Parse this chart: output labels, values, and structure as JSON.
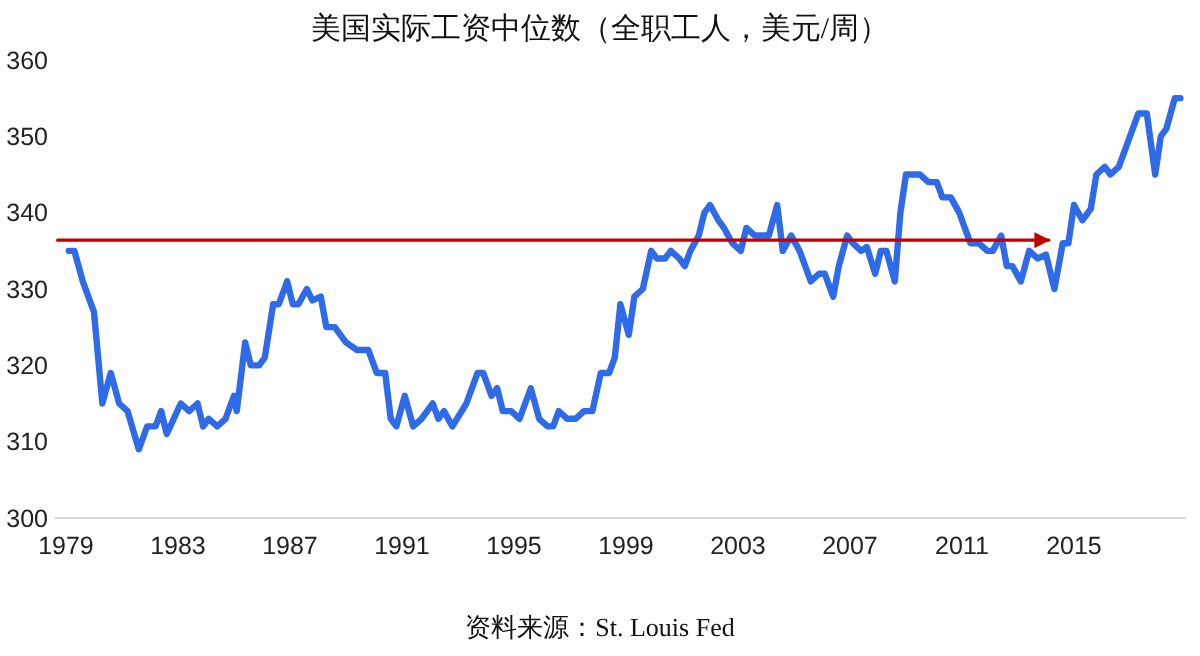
{
  "chart_data": {
    "type": "line",
    "title": "美国实际工资中位数（全职工人，美元/周）",
    "annotations": [
      "资料来源：St. Louis Fed"
    ],
    "xlim": [
      1978.6,
      2019
    ],
    "xticks": [
      1979,
      1983,
      1987,
      1991,
      1995,
      1999,
      2003,
      2007,
      2011,
      2015
    ],
    "ylim": [
      300,
      360
    ],
    "yticks": [
      300,
      310,
      320,
      330,
      340,
      350,
      360
    ],
    "series": [
      {
        "color": "#2f6ae8",
        "x": [
          1979.1,
          1979.3,
          1979.6,
          1980.0,
          1980.3,
          1980.6,
          1980.9,
          1981.2,
          1981.6,
          1981.9,
          1982.2,
          1982.4,
          1982.6,
          1983.1,
          1983.4,
          1983.7,
          1983.9,
          1984.1,
          1984.4,
          1984.7,
          1985.0,
          1985.1,
          1985.4,
          1985.6,
          1985.9,
          1986.1,
          1986.4,
          1986.6,
          1986.9,
          1987.1,
          1987.3,
          1987.6,
          1987.8,
          1988.1,
          1988.3,
          1988.6,
          1989.0,
          1989.4,
          1989.8,
          1990.1,
          1990.4,
          1990.6,
          1990.8,
          1991.1,
          1991.4,
          1991.7,
          1992.1,
          1992.3,
          1992.5,
          1992.8,
          1993.3,
          1993.7,
          1993.9,
          1994.2,
          1994.4,
          1994.6,
          1994.9,
          1995.2,
          1995.6,
          1995.9,
          1996.2,
          1996.4,
          1996.6,
          1996.9,
          1997.2,
          1997.5,
          1997.8,
          1998.1,
          1998.4,
          1998.6,
          1998.8,
          1999.1,
          1999.3,
          1999.6,
          1999.9,
          2000.1,
          2000.4,
          2000.6,
          2000.9,
          2001.1,
          2001.3,
          2001.6,
          2001.8,
          2002.0,
          2002.3,
          2002.5,
          2002.8,
          2003.1,
          2003.3,
          2003.6,
          2003.9,
          2004.1,
          2004.4,
          2004.6,
          2004.9,
          2005.2,
          2005.6,
          2005.9,
          2006.1,
          2006.4,
          2006.6,
          2006.9,
          2007.1,
          2007.4,
          2007.6,
          2007.9,
          2008.1,
          2008.3,
          2008.6,
          2008.8,
          2009.0,
          2009.5,
          2009.8,
          2010.1,
          2010.3,
          2010.6,
          2010.9,
          2011.1,
          2011.3,
          2011.6,
          2011.9,
          2012.1,
          2012.4,
          2012.6,
          2012.8,
          2013.1,
          2013.4,
          2013.7,
          2014.0,
          2014.3,
          2014.6,
          2014.8,
          2015.0,
          2015.3,
          2015.6,
          2015.8,
          2016.1,
          2016.3,
          2016.6,
          2016.8,
          2017.1,
          2017.3,
          2017.6,
          2017.9,
          2018.1,
          2018.3,
          2018.6,
          2018.8
        ],
        "values": [
          335,
          335,
          331,
          327,
          315,
          319,
          315,
          314,
          309,
          312,
          312,
          314,
          311,
          315,
          314,
          315,
          312,
          313,
          312,
          313,
          316,
          314,
          323,
          320,
          320,
          321,
          328,
          328,
          331,
          328,
          328,
          330,
          328.5,
          329,
          325,
          325,
          323,
          322,
          322,
          319,
          319,
          313,
          312,
          316,
          312,
          313,
          315,
          313,
          314,
          312,
          315,
          319,
          319,
          316,
          317,
          314,
          314,
          313,
          317,
          313,
          312,
          312,
          314,
          313,
          313,
          314,
          314,
          319,
          319,
          321,
          328,
          324,
          329,
          330,
          335,
          334,
          334,
          335,
          334,
          333,
          335,
          337,
          340,
          341,
          339,
          338,
          336,
          335,
          338,
          337,
          337,
          337,
          341,
          335,
          337,
          335,
          331,
          332,
          332,
          329,
          333,
          337,
          336,
          335,
          335.5,
          332,
          335,
          335,
          331,
          340,
          345,
          345,
          344,
          344,
          342,
          342,
          340,
          338,
          336,
          336,
          335,
          335,
          337,
          333,
          333,
          331,
          335,
          334,
          334.5,
          330,
          336,
          336,
          341,
          339,
          340.5,
          345,
          346,
          345,
          346,
          348,
          351,
          353,
          353,
          345,
          350,
          351,
          355,
          355
        ]
      },
      {
        "type": "line",
        "color": "#c00000",
        "x": [
          1978.7,
          2014.1
        ],
        "values": [
          336.4,
          336.4
        ]
      }
    ]
  }
}
